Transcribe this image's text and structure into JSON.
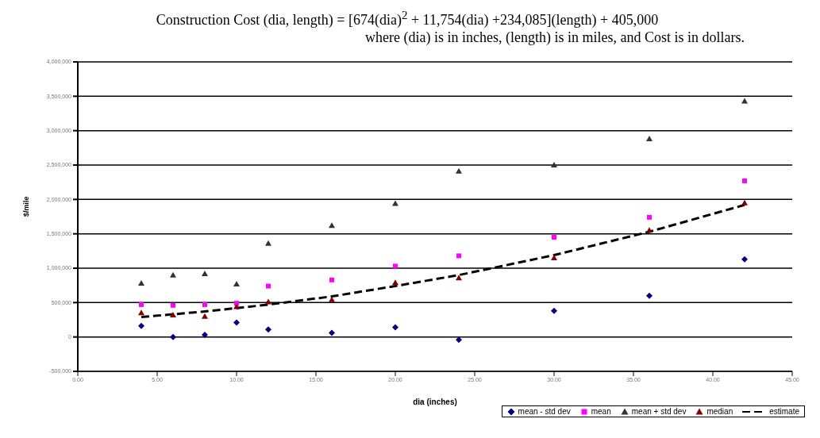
{
  "chart_data": {
    "type": "scatter",
    "title": "Construction Cost (dia, length) = [674(dia)$^{2}$ + 11,754(dia) +234,085](length) + 405,000",
    "subtitle": "where (dia) is in inches, (length) is in miles, and Cost is in dollars.",
    "xlabel": "dia (inches)",
    "ylabel": "$/mile",
    "x": [
      4,
      6,
      8,
      10,
      12,
      16,
      20,
      24,
      30,
      36,
      42
    ],
    "series": [
      {
        "name": "mean - std dev",
        "color": "#000080",
        "marker": "diamond",
        "values": [
          160000,
          0,
          30000,
          210000,
          110000,
          60000,
          140000,
          -40000,
          380000,
          600000,
          1130000
        ]
      },
      {
        "name": "mean",
        "color": "#ff00ff",
        "marker": "square",
        "values": [
          470000,
          460000,
          470000,
          490000,
          740000,
          830000,
          1030000,
          1180000,
          1450000,
          1740000,
          2270000
        ]
      },
      {
        "name": "mean + std dev",
        "color": "#333333",
        "marker": "triangle",
        "values": [
          780000,
          900000,
          920000,
          770000,
          1360000,
          1620000,
          1940000,
          2410000,
          2500000,
          2880000,
          3430000
        ]
      },
      {
        "name": "median",
        "color": "#800000",
        "marker": "triangle",
        "values": [
          350000,
          320000,
          300000,
          440000,
          510000,
          540000,
          790000,
          860000,
          1150000,
          1550000,
          1950000
        ]
      },
      {
        "name": "estimate",
        "type": "line",
        "color": "#000000",
        "line_style": "dashed",
        "marker": "none",
        "values": [
          290000,
          330000,
          370000,
          420000,
          470000,
          590000,
          740000,
          900000,
          1190000,
          1530000,
          1920000
        ]
      }
    ],
    "xlim": [
      0,
      45
    ],
    "xticks": [
      {
        "value": 0,
        "label": "0.00"
      },
      {
        "value": 5,
        "label": "5.00"
      },
      {
        "value": 10,
        "label": "10.00"
      },
      {
        "value": 15,
        "label": "15.00"
      },
      {
        "value": 20,
        "label": "20.00"
      },
      {
        "value": 25,
        "label": "25.00"
      },
      {
        "value": 30,
        "label": "30.00"
      },
      {
        "value": 35,
        "label": "35.00"
      },
      {
        "value": 40,
        "label": "40.00"
      },
      {
        "value": 45,
        "label": "45.00"
      }
    ],
    "ylim": [
      -500000,
      4000000
    ],
    "yticks": [
      {
        "value": -500000,
        "label": "-500,000"
      },
      {
        "value": 0,
        "label": "0"
      },
      {
        "value": 500000,
        "label": "500,000"
      },
      {
        "value": 1000000,
        "label": "1,000,000"
      },
      {
        "value": 1500000,
        "label": "1,500,000"
      },
      {
        "value": 2000000,
        "label": "2,000,000"
      },
      {
        "value": 2500000,
        "label": "2,500,000"
      },
      {
        "value": 3000000,
        "label": "3,000,000"
      },
      {
        "value": 3500000,
        "label": "3,500,000"
      },
      {
        "value": 4000000,
        "label": "4,000,000"
      }
    ],
    "grid": "y",
    "legend": "bottom right"
  }
}
